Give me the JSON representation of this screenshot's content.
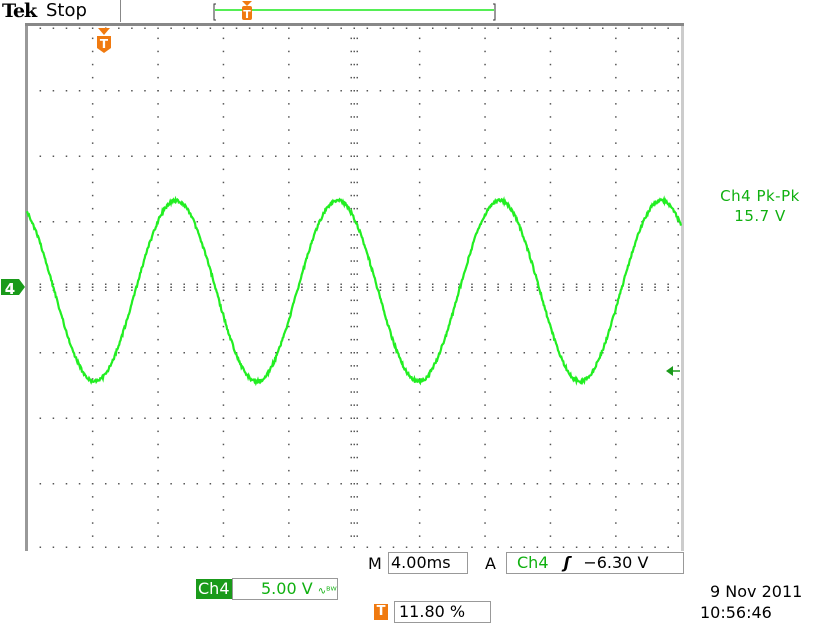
{
  "header": {
    "brand": "Tek",
    "status": "Stop"
  },
  "measurement": {
    "label": "Ch4 Pk-Pk",
    "value": "15.7 V"
  },
  "channel_marker": "4",
  "trigger_marker": "T",
  "timebase": {
    "prefix": "M",
    "value": "4.00ms"
  },
  "trigger": {
    "mode": "A",
    "source": "Ch4",
    "slope_icon": "rising-edge-icon",
    "slope_glyph": "ʃ",
    "level": "−6.30 V"
  },
  "channel": {
    "name": "Ch4",
    "scale": "5.00 V",
    "bw_icon": "bandwidth-limit-icon",
    "bw_text": "∿ᴮᵂ"
  },
  "trigger_position": {
    "icon": "T",
    "value": "11.80 %"
  },
  "datetime": {
    "date": "9 Nov 2011",
    "time": "10:56:46"
  },
  "colors": {
    "trace": "#22ee22",
    "channel": "#1a9a1a",
    "trigger": "#f07a10",
    "grid": "#666666"
  },
  "chart_data": {
    "type": "line",
    "x_units": "ms",
    "y_units": "V",
    "xlim": [
      0,
      40
    ],
    "ylim": [
      -20,
      20
    ],
    "x_divisions": 10,
    "y_divisions": 8,
    "grid": true,
    "series": [
      {
        "waveform": "sine",
        "period_ms": 9.9,
        "peak_to_peak_v": 15.7,
        "first_peak_ms": 9.1,
        "offset_v": -0.3
      }
    ]
  }
}
